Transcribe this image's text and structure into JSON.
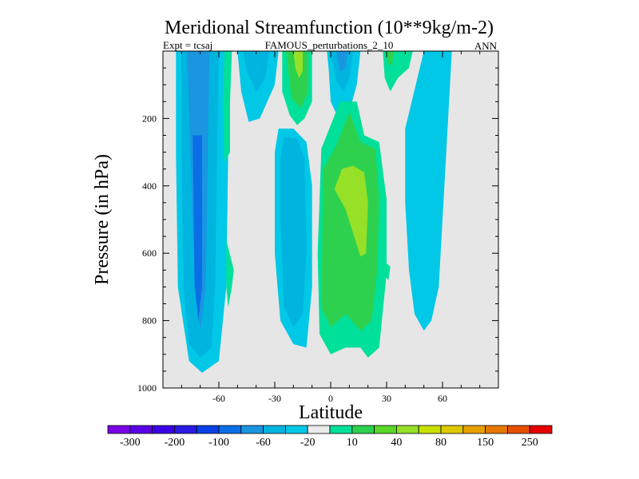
{
  "chart_data": {
    "type": "contour",
    "title": "Meridional Streamfunction (10**9kg/m-2)",
    "subtitle_left": "Expt = tcsaj",
    "subtitle_center": "FAMOUS_perturbations_2_10",
    "subtitle_right": "ANN",
    "xlabel": "Latitude",
    "ylabel": "Pressure (in hPa)",
    "xlim": [
      -90,
      90
    ],
    "ylim": [
      1000,
      0
    ],
    "y_inverted": true,
    "xticks": [
      -60,
      -30,
      0,
      30,
      60
    ],
    "xtick_labels": [
      "-60",
      "-30",
      "0",
      "30",
      "60"
    ],
    "yticks": [
      200,
      400,
      600,
      800,
      1000
    ],
    "ytick_labels": [
      "200",
      "400",
      "600",
      "800",
      "1000"
    ],
    "background_color": "#e6e6e6",
    "colorbar": {
      "colors": [
        "#7a00e6",
        "#5a00e6",
        "#3c00e6",
        "#2a1ae6",
        "#0a3fe6",
        "#0a6fe6",
        "#1a96e0",
        "#00b4e0",
        "#00c8e6",
        "#ebebeb",
        "#00e09a",
        "#2ed14e",
        "#5ad628",
        "#96e028",
        "#c8e000",
        "#e0c800",
        "#e6a000",
        "#e67800",
        "#e65000",
        "#e60000"
      ],
      "labels": [
        "-300",
        "-200",
        "-100",
        "-60",
        "-20",
        "10",
        "40",
        "80",
        "150",
        "250"
      ],
      "label_boundaries": [
        1,
        3,
        5,
        7,
        9,
        11,
        13,
        15,
        17,
        19
      ]
    },
    "regions": [
      {
        "name": "sh-cell-outer",
        "level": -20,
        "color": "#00c8e6",
        "points": [
          [
            -83,
            0
          ],
          [
            -55,
            0
          ],
          [
            -55,
            300
          ],
          [
            -56,
            700
          ],
          [
            -60,
            920
          ],
          [
            -69,
            955
          ],
          [
            -76,
            920
          ],
          [
            -82,
            700
          ],
          [
            -83,
            300
          ]
        ]
      },
      {
        "name": "sh-cell-mid",
        "level": -40,
        "color": "#00b4e0",
        "points": [
          [
            -80,
            0
          ],
          [
            -60,
            0
          ],
          [
            -61,
            300
          ],
          [
            -62,
            700
          ],
          [
            -64,
            880
          ],
          [
            -70,
            910
          ],
          [
            -76,
            870
          ],
          [
            -79,
            700
          ],
          [
            -80,
            300
          ]
        ]
      },
      {
        "name": "sh-cell-inner",
        "level": -60,
        "color": "#1a96e0",
        "points": [
          [
            -77,
            0
          ],
          [
            -65,
            0
          ],
          [
            -66,
            350
          ],
          [
            -67,
            700
          ],
          [
            -70,
            830
          ],
          [
            -73,
            700
          ],
          [
            -75,
            350
          ]
        ]
      },
      {
        "name": "sh-cell-core",
        "level": -100,
        "color": "#0a6fe6",
        "points": [
          [
            -74,
            250
          ],
          [
            -69,
            250
          ],
          [
            -69,
            700
          ],
          [
            -71,
            800
          ],
          [
            -73,
            700
          ]
        ]
      },
      {
        "name": "ferrel-upper",
        "level": -20,
        "color": "#00c8e6",
        "points": [
          [
            -50,
            0
          ],
          [
            -28,
            0
          ],
          [
            -30,
            100
          ],
          [
            -38,
            200
          ],
          [
            -44,
            210
          ],
          [
            -48,
            120
          ]
        ]
      },
      {
        "name": "ferrel-upper-mid",
        "level": -40,
        "color": "#00b4e0",
        "points": [
          [
            -47,
            0
          ],
          [
            -33,
            0
          ],
          [
            -35,
            80
          ],
          [
            -40,
            120
          ],
          [
            -45,
            60
          ]
        ]
      },
      {
        "name": "mid-south-cell",
        "level": -20,
        "color": "#00c8e6",
        "points": [
          [
            -28,
            230
          ],
          [
            -20,
            230
          ],
          [
            -13,
            270
          ],
          [
            -10,
            400
          ],
          [
            -10,
            700
          ],
          [
            -13,
            880
          ],
          [
            -20,
            870
          ],
          [
            -27,
            800
          ],
          [
            -30,
            600
          ],
          [
            -30,
            300
          ]
        ]
      },
      {
        "name": "mid-south-cell-inner",
        "level": -40,
        "color": "#00b4e0",
        "points": [
          [
            -25,
            255
          ],
          [
            -18,
            260
          ],
          [
            -14,
            320
          ],
          [
            -13,
            600
          ],
          [
            -15,
            780
          ],
          [
            -20,
            820
          ],
          [
            -25,
            760
          ],
          [
            -27,
            500
          ],
          [
            -27,
            320
          ]
        ]
      },
      {
        "name": "green-column-left",
        "level": 10,
        "color": "#00e09a",
        "points": [
          [
            -57,
            0
          ],
          [
            -53,
            0
          ],
          [
            -54,
            150
          ],
          [
            -54,
            300
          ],
          [
            -57,
            330
          ],
          [
            -58,
            150
          ]
        ]
      },
      {
        "name": "green-blob-left",
        "level": 10,
        "color": "#00e09a",
        "points": [
          [
            -56,
            560
          ],
          [
            -52,
            650
          ],
          [
            -53,
            700
          ],
          [
            -55,
            760
          ],
          [
            -56,
            700
          ]
        ]
      },
      {
        "name": "tropical-blue-top",
        "level": -20,
        "color": "#00c8e6",
        "points": [
          [
            -2,
            0
          ],
          [
            16,
            0
          ],
          [
            14,
            100
          ],
          [
            10,
            180
          ],
          [
            5,
            210
          ],
          [
            0,
            150
          ],
          [
            -1,
            60
          ]
        ]
      },
      {
        "name": "tropical-blue-inner",
        "level": -40,
        "color": "#00b4e0",
        "points": [
          [
            0,
            0
          ],
          [
            12,
            0
          ],
          [
            10,
            80
          ],
          [
            7,
            120
          ],
          [
            3,
            90
          ]
        ]
      },
      {
        "name": "tropical-blue-core",
        "level": -60,
        "color": "#1a96e0",
        "points": [
          [
            3,
            0
          ],
          [
            9,
            0
          ],
          [
            8,
            50
          ],
          [
            5,
            60
          ]
        ]
      },
      {
        "name": "green-upper-tropics",
        "level": 10,
        "color": "#00e09a",
        "points": [
          [
            -26,
            0
          ],
          [
            -10,
            0
          ],
          [
            -10,
            150
          ],
          [
            -14,
            200
          ],
          [
            -18,
            220
          ],
          [
            -22,
            190
          ],
          [
            -26,
            120
          ]
        ]
      },
      {
        "name": "green-upper-inner",
        "level": 40,
        "color": "#2ed14e",
        "points": [
          [
            -24,
            0
          ],
          [
            -12,
            0
          ],
          [
            -12,
            120
          ],
          [
            -16,
            170
          ],
          [
            -21,
            140
          ]
        ]
      },
      {
        "name": "yellow-upper",
        "level": 80,
        "color": "#96e028",
        "points": [
          [
            -20,
            0
          ],
          [
            -15,
            0
          ],
          [
            -15,
            60
          ],
          [
            -17,
            80
          ],
          [
            -19,
            50
          ]
        ]
      },
      {
        "name": "green-column-nh",
        "level": 10,
        "color": "#00e09a",
        "points": [
          [
            28,
            0
          ],
          [
            44,
            0
          ],
          [
            42,
            50
          ],
          [
            36,
            80
          ],
          [
            32,
            120
          ],
          [
            29,
            80
          ]
        ]
      },
      {
        "name": "green-column-nh-inner",
        "level": 40,
        "color": "#2ed14e",
        "points": [
          [
            30,
            0
          ],
          [
            34,
            0
          ],
          [
            33,
            40
          ],
          [
            31,
            40
          ]
        ]
      },
      {
        "name": "tropical-green-outer",
        "level": 10,
        "color": "#00e09a",
        "points": [
          [
            -5,
            290
          ],
          [
            5,
            150
          ],
          [
            14,
            150
          ],
          [
            18,
            250
          ],
          [
            26,
            270
          ],
          [
            30,
            440
          ],
          [
            30,
            660
          ],
          [
            26,
            880
          ],
          [
            20,
            910
          ],
          [
            16,
            880
          ],
          [
            8,
            880
          ],
          [
            0,
            900
          ],
          [
            -6,
            840
          ],
          [
            -7,
            600
          ]
        ]
      },
      {
        "name": "tropical-green-mid",
        "level": 40,
        "color": "#2ed14e",
        "points": [
          [
            -4,
            350
          ],
          [
            3,
            280
          ],
          [
            10,
            180
          ],
          [
            16,
            270
          ],
          [
            24,
            290
          ],
          [
            26,
            440
          ],
          [
            25,
            650
          ],
          [
            22,
            800
          ],
          [
            16,
            830
          ],
          [
            8,
            780
          ],
          [
            0,
            820
          ],
          [
            -5,
            760
          ]
        ]
      },
      {
        "name": "tropical-yellow-inner",
        "level": 80,
        "color": "#96e028",
        "points": [
          [
            2,
            410
          ],
          [
            6,
            350
          ],
          [
            12,
            340
          ],
          [
            18,
            360
          ],
          [
            20,
            450
          ],
          [
            19,
            600
          ],
          [
            16,
            610
          ],
          [
            12,
            540
          ],
          [
            8,
            470
          ]
        ]
      },
      {
        "name": "nh-tiny-green",
        "level": 10,
        "color": "#00e09a",
        "points": [
          [
            28,
            620
          ],
          [
            32,
            640
          ],
          [
            31,
            680
          ],
          [
            28,
            660
          ]
        ]
      },
      {
        "name": "nh-cell-blue",
        "level": -20,
        "color": "#00c8e6",
        "points": [
          [
            40,
            230
          ],
          [
            50,
            0
          ],
          [
            65,
            0
          ],
          [
            62,
            300
          ],
          [
            58,
            700
          ],
          [
            54,
            800
          ],
          [
            50,
            830
          ],
          [
            45,
            780
          ],
          [
            42,
            650
          ],
          [
            40,
            450
          ]
        ]
      }
    ]
  }
}
